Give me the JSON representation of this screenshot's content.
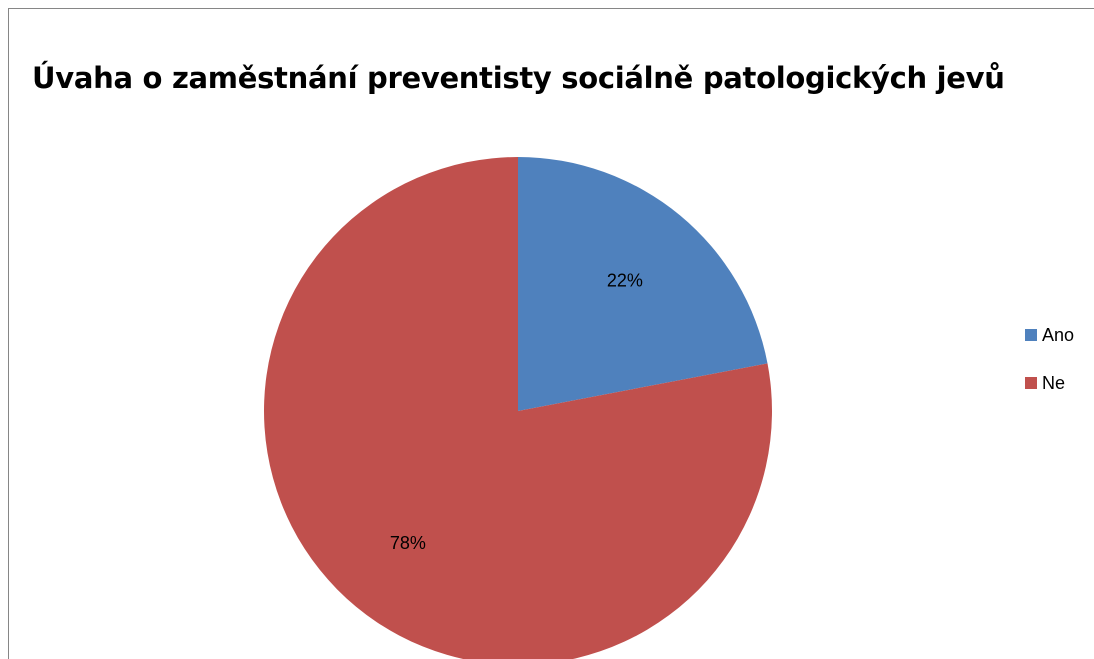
{
  "chart_data": {
    "type": "pie",
    "title": "Úvaha o zaměstnání preventisty sociálně patologických jevů",
    "categories": [
      "Ano",
      "Ne"
    ],
    "values": [
      22,
      78
    ],
    "data_labels": [
      "22%",
      "78%"
    ],
    "colors": [
      "#4F81BD",
      "#C0504D"
    ],
    "legend_position": "right"
  }
}
